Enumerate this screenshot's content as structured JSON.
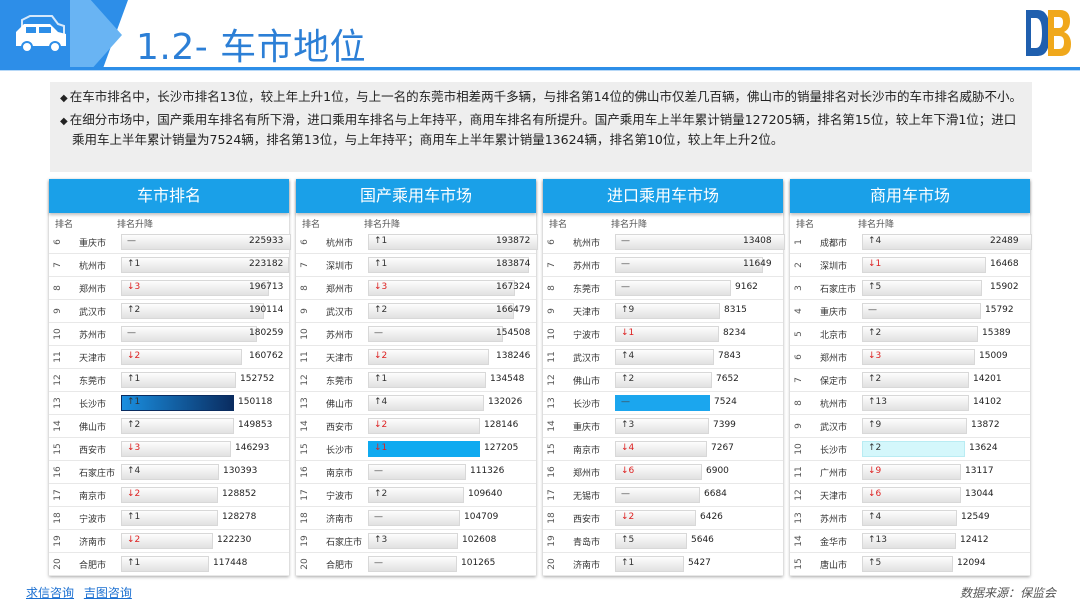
{
  "page_title": "1.2- 车市地位",
  "summary": [
    "在车市排名中，长沙市排名13位，较上年上升1位，与上一名的东莞市相差两千多辆，与排名第14位的佛山市仅差几百辆，佛山市的销量排名对长沙市的车市排名威胁不小。",
    "在细分市场中，国产乘用车排名有所下滑，进口乘用车排名与上年持平，商用车排名有所提升。国产乘用车上半年累计销量127205辆，排名第15位，较上年下滑1位；进口乘用车上半年累计销量为7524辆，排名第13位，与上年持平；商用车上半年累计销量13624辆，排名第10位，较上年上升2位。"
  ],
  "bullet_symbol": "◆",
  "col_rank": "排名",
  "col_change": "排名升降",
  "panels": [
    {
      "title": "车市排名",
      "max": 225933,
      "rows": [
        {
          "rank": "6",
          "city": "重庆市",
          "change": "—",
          "dir": "flat",
          "value": "225933",
          "num": 225933
        },
        {
          "rank": "7",
          "city": "杭州市",
          "change": "↑1",
          "dir": "up",
          "value": "223182",
          "num": 223182
        },
        {
          "rank": "8",
          "city": "郑州市",
          "change": "↓3",
          "dir": "down",
          "value": "196713",
          "num": 196713
        },
        {
          "rank": "9",
          "city": "武汉市",
          "change": "↑2",
          "dir": "up",
          "value": "190114",
          "num": 190114
        },
        {
          "rank": "10",
          "city": "苏州市",
          "change": "—",
          "dir": "flat",
          "value": "180259",
          "num": 180259
        },
        {
          "rank": "11",
          "city": "天津市",
          "change": "↓2",
          "dir": "down",
          "value": "160762",
          "num": 160762
        },
        {
          "rank": "12",
          "city": "东莞市",
          "change": "↑1",
          "dir": "up",
          "value": "152752",
          "num": 152752
        },
        {
          "rank": "13",
          "city": "长沙市",
          "change": "↑1",
          "dir": "up",
          "value": "150118",
          "num": 150118,
          "hl": "dark"
        },
        {
          "rank": "14",
          "city": "佛山市",
          "change": "↑2",
          "dir": "up",
          "value": "149853",
          "num": 149853
        },
        {
          "rank": "15",
          "city": "西安市",
          "change": "↓3",
          "dir": "down",
          "value": "146293",
          "num": 146293
        },
        {
          "rank": "16",
          "city": "石家庄市",
          "change": "↑4",
          "dir": "up",
          "value": "130393",
          "num": 130393
        },
        {
          "rank": "17",
          "city": "南京市",
          "change": "↓2",
          "dir": "down",
          "value": "128852",
          "num": 128852
        },
        {
          "rank": "18",
          "city": "宁波市",
          "change": "↑1",
          "dir": "up",
          "value": "128278",
          "num": 128278
        },
        {
          "rank": "19",
          "city": "济南市",
          "change": "↓2",
          "dir": "down",
          "value": "122230",
          "num": 122230
        },
        {
          "rank": "20",
          "city": "合肥市",
          "change": "↑1",
          "dir": "up",
          "value": "117448",
          "num": 117448
        }
      ]
    },
    {
      "title": "国产乘用车市场",
      "max": 193872,
      "rows": [
        {
          "rank": "6",
          "city": "杭州市",
          "change": "↑1",
          "dir": "up",
          "value": "193872",
          "num": 193872
        },
        {
          "rank": "7",
          "city": "深圳市",
          "change": "↑1",
          "dir": "up",
          "value": "183874",
          "num": 183874
        },
        {
          "rank": "8",
          "city": "郑州市",
          "change": "↓3",
          "dir": "down",
          "value": "167324",
          "num": 167324
        },
        {
          "rank": "9",
          "city": "武汉市",
          "change": "↑2",
          "dir": "up",
          "value": "166479",
          "num": 166479
        },
        {
          "rank": "10",
          "city": "苏州市",
          "change": "—",
          "dir": "flat",
          "value": "154508",
          "num": 154508
        },
        {
          "rank": "11",
          "city": "天津市",
          "change": "↓2",
          "dir": "down",
          "value": "138246",
          "num": 138246
        },
        {
          "rank": "12",
          "city": "东莞市",
          "change": "↑1",
          "dir": "up",
          "value": "134548",
          "num": 134548
        },
        {
          "rank": "13",
          "city": "佛山市",
          "change": "↑4",
          "dir": "up",
          "value": "132026",
          "num": 132026
        },
        {
          "rank": "14",
          "city": "西安市",
          "change": "↓2",
          "dir": "down",
          "value": "128146",
          "num": 128146
        },
        {
          "rank": "15",
          "city": "长沙市",
          "change": "↓1",
          "dir": "down",
          "value": "127205",
          "num": 127205,
          "hl": "blue"
        },
        {
          "rank": "16",
          "city": "南京市",
          "change": "—",
          "dir": "flat",
          "value": "111326",
          "num": 111326
        },
        {
          "rank": "17",
          "city": "宁波市",
          "change": "↑2",
          "dir": "up",
          "value": "109640",
          "num": 109640
        },
        {
          "rank": "18",
          "city": "济南市",
          "change": "—",
          "dir": "flat",
          "value": "104709",
          "num": 104709
        },
        {
          "rank": "19",
          "city": "石家庄市",
          "change": "↑3",
          "dir": "up",
          "value": "102608",
          "num": 102608
        },
        {
          "rank": "20",
          "city": "合肥市",
          "change": "—",
          "dir": "flat",
          "value": "101265",
          "num": 101265
        }
      ]
    },
    {
      "title": "进口乘用车市场",
      "max": 13408,
      "rows": [
        {
          "rank": "6",
          "city": "杭州市",
          "change": "—",
          "dir": "flat",
          "value": "13408",
          "num": 13408
        },
        {
          "rank": "7",
          "city": "苏州市",
          "change": "—",
          "dir": "flat",
          "value": "11649",
          "num": 11649
        },
        {
          "rank": "8",
          "city": "东莞市",
          "change": "—",
          "dir": "flat",
          "value": "9162",
          "num": 9162
        },
        {
          "rank": "9",
          "city": "天津市",
          "change": "↑9",
          "dir": "up",
          "value": "8315",
          "num": 8315
        },
        {
          "rank": "10",
          "city": "宁波市",
          "change": "↓1",
          "dir": "down",
          "value": "8234",
          "num": 8234
        },
        {
          "rank": "11",
          "city": "武汉市",
          "change": "↑4",
          "dir": "up",
          "value": "7843",
          "num": 7843
        },
        {
          "rank": "12",
          "city": "佛山市",
          "change": "↑2",
          "dir": "up",
          "value": "7652",
          "num": 7652
        },
        {
          "rank": "13",
          "city": "长沙市",
          "change": "—",
          "dir": "flat",
          "value": "7524",
          "num": 7524,
          "hl": "bright"
        },
        {
          "rank": "14",
          "city": "重庆市",
          "change": "↑3",
          "dir": "up",
          "value": "7399",
          "num": 7399
        },
        {
          "rank": "15",
          "city": "南京市",
          "change": "↓4",
          "dir": "down",
          "value": "7267",
          "num": 7267
        },
        {
          "rank": "16",
          "city": "郑州市",
          "change": "↓6",
          "dir": "down",
          "value": "6900",
          "num": 6900
        },
        {
          "rank": "17",
          "city": "无锡市",
          "change": "—",
          "dir": "flat",
          "value": "6684",
          "num": 6684
        },
        {
          "rank": "18",
          "city": "西安市",
          "change": "↓2",
          "dir": "down",
          "value": "6426",
          "num": 6426
        },
        {
          "rank": "19",
          "city": "青岛市",
          "change": "↑5",
          "dir": "up",
          "value": "5646",
          "num": 5646
        },
        {
          "rank": "20",
          "city": "济南市",
          "change": "↑1",
          "dir": "up",
          "value": "5427",
          "num": 5427
        }
      ]
    },
    {
      "title": "商用车市场",
      "max": 22489,
      "rows": [
        {
          "rank": "1",
          "city": "成都市",
          "change": "↑4",
          "dir": "up",
          "value": "22489",
          "num": 22489
        },
        {
          "rank": "2",
          "city": "深圳市",
          "change": "↓1",
          "dir": "down",
          "value": "16468",
          "num": 16468
        },
        {
          "rank": "3",
          "city": "石家庄市",
          "change": "↑5",
          "dir": "up",
          "value": "15902",
          "num": 15902
        },
        {
          "rank": "4",
          "city": "重庆市",
          "change": "—",
          "dir": "flat",
          "value": "15792",
          "num": 15792
        },
        {
          "rank": "5",
          "city": "北京市",
          "change": "↑2",
          "dir": "up",
          "value": "15389",
          "num": 15389
        },
        {
          "rank": "6",
          "city": "郑州市",
          "change": "↓3",
          "dir": "down",
          "value": "15009",
          "num": 15009
        },
        {
          "rank": "7",
          "city": "保定市",
          "change": "↑2",
          "dir": "up",
          "value": "14201",
          "num": 14201
        },
        {
          "rank": "8",
          "city": "杭州市",
          "change": "↑13",
          "dir": "up",
          "value": "14102",
          "num": 14102
        },
        {
          "rank": "9",
          "city": "武汉市",
          "change": "↑9",
          "dir": "up",
          "value": "13872",
          "num": 13872
        },
        {
          "rank": "10",
          "city": "长沙市",
          "change": "↑2",
          "dir": "up",
          "value": "13624",
          "num": 13624,
          "hl": "pale"
        },
        {
          "rank": "11",
          "city": "广州市",
          "change": "↓9",
          "dir": "down",
          "value": "13117",
          "num": 13117
        },
        {
          "rank": "12",
          "city": "天津市",
          "change": "↓6",
          "dir": "down",
          "value": "13044",
          "num": 13044
        },
        {
          "rank": "13",
          "city": "苏州市",
          "change": "↑4",
          "dir": "up",
          "value": "12549",
          "num": 12549
        },
        {
          "rank": "14",
          "city": "金华市",
          "change": "↑13",
          "dir": "up",
          "value": "12412",
          "num": 12412
        },
        {
          "rank": "15",
          "city": "唐山市",
          "change": "↑5",
          "dir": "up",
          "value": "12094",
          "num": 12094
        }
      ]
    }
  ],
  "footer_links": [
    "求信咨询",
    "吉图咨询"
  ],
  "source": "数据来源：保监会"
}
